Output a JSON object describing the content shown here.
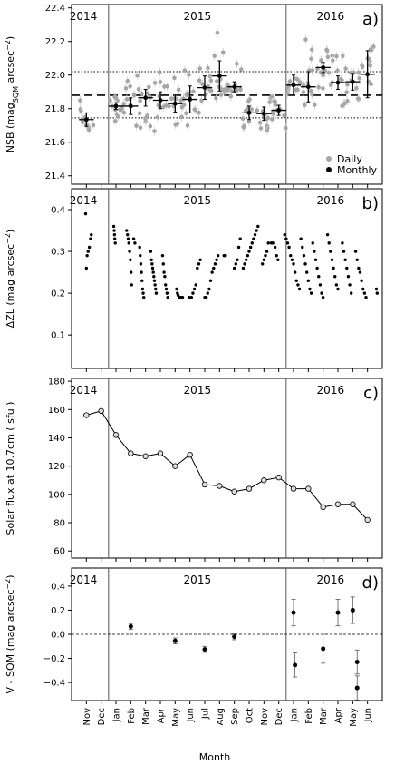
{
  "figure": {
    "xlabel": "Month",
    "month_ticks": [
      "Nov",
      "Dec",
      "Jan",
      "Feb",
      "Mar",
      "Apr",
      "May",
      "Jun",
      "Jul",
      "Aug",
      "Sep",
      "Oct",
      "Nov",
      "Dec",
      "Jan",
      "Feb",
      "Mar",
      "Apr",
      "May",
      "Jun"
    ],
    "years": [
      "2014",
      "2015",
      "2016"
    ],
    "colors": {
      "daily": "#a6a6a6",
      "monthly": "#000000",
      "axis": "#000000"
    }
  },
  "chart_data": [
    {
      "panel_label": "a)",
      "type": "scatter",
      "ylabel_main": "NSB (mag",
      "ylabel_sub": "SQM",
      "ylabel_tail": " arcsec",
      "ylabel_sup": "−2",
      "ylabel_close": ")",
      "ylim": [
        21.35,
        22.42
      ],
      "yticks": [
        "21.4",
        "21.6",
        "21.8",
        "22.0",
        "22.2",
        "22.4"
      ],
      "legend": {
        "daily": "Daily",
        "monthly": "Monthly",
        "position": "bottom-right"
      },
      "hlines": {
        "mean": 21.88,
        "upper": 22.02,
        "lower": 21.745
      },
      "daily_spread": [
        [
          0,
          21.74,
          0.12
        ],
        [
          2,
          21.83,
          0.12
        ],
        [
          3,
          21.84,
          0.2
        ],
        [
          4,
          21.87,
          0.22
        ],
        [
          5,
          21.83,
          0.22
        ],
        [
          6,
          21.85,
          0.22
        ],
        [
          7,
          21.9,
          0.22
        ],
        [
          8,
          21.92,
          0.22
        ],
        [
          9,
          22.03,
          0.28
        ],
        [
          10,
          21.95,
          0.14
        ],
        [
          11,
          21.78,
          0.16
        ],
        [
          12,
          21.76,
          0.14
        ],
        [
          13,
          21.8,
          0.12
        ],
        [
          14,
          21.94,
          0.1
        ],
        [
          15,
          22.0,
          0.26
        ],
        [
          16,
          22.05,
          0.16
        ],
        [
          17,
          21.98,
          0.22
        ],
        [
          18,
          22.0,
          0.22
        ],
        [
          19,
          22.06,
          0.18
        ]
      ],
      "monthly": [
        {
          "x": 0,
          "y": 21.735,
          "xerr": 0.5,
          "yerr": 0.04
        },
        {
          "x": 2,
          "y": 21.815,
          "xerr": 0.5,
          "yerr": 0.02
        },
        {
          "x": 3,
          "y": 21.815,
          "xerr": 0.5,
          "yerr": 0.05
        },
        {
          "x": 4,
          "y": 21.865,
          "xerr": 0.5,
          "yerr": 0.05
        },
        {
          "x": 5,
          "y": 21.85,
          "xerr": 0.5,
          "yerr": 0.05
        },
        {
          "x": 6,
          "y": 21.83,
          "xerr": 0.5,
          "yerr": 0.05
        },
        {
          "x": 7,
          "y": 21.855,
          "xerr": 0.5,
          "yerr": 0.08
        },
        {
          "x": 8,
          "y": 21.925,
          "xerr": 0.5,
          "yerr": 0.07
        },
        {
          "x": 9,
          "y": 21.995,
          "xerr": 0.5,
          "yerr": 0.09
        },
        {
          "x": 10,
          "y": 21.93,
          "xerr": 0.5,
          "yerr": 0.03
        },
        {
          "x": 11,
          "y": 21.775,
          "xerr": 0.5,
          "yerr": 0.04
        },
        {
          "x": 12,
          "y": 21.77,
          "xerr": 0.5,
          "yerr": 0.04
        },
        {
          "x": 13,
          "y": 21.79,
          "xerr": 0.5,
          "yerr": 0.03
        },
        {
          "x": 14,
          "y": 21.94,
          "xerr": 0.5,
          "yerr": 0.06
        },
        {
          "x": 15,
          "y": 21.93,
          "xerr": 0.5,
          "yerr": 0.09
        },
        {
          "x": 16,
          "y": 22.045,
          "xerr": 0.5,
          "yerr": 0.03
        },
        {
          "x": 17,
          "y": 21.955,
          "xerr": 0.5,
          "yerr": 0.04
        },
        {
          "x": 18,
          "y": 21.96,
          "xerr": 0.5,
          "yerr": 0.05
        },
        {
          "x": 19,
          "y": 22.005,
          "xerr": 0.5,
          "yerr": 0.14
        }
      ]
    },
    {
      "panel_label": "b)",
      "type": "scatter",
      "ylabel_main": "ΔZL  (mag  arcsec",
      "ylabel_sup": "−2",
      "ylabel_close": ")",
      "ylim": [
        0.02,
        0.45
      ],
      "yticks": [
        "0.1",
        "0.2",
        "0.3",
        "0.4"
      ],
      "points": [
        [
          -0.05,
          0.39
        ],
        [
          0.0,
          0.26
        ],
        [
          0.05,
          0.29
        ],
        [
          0.12,
          0.3
        ],
        [
          0.2,
          0.31
        ],
        [
          0.28,
          0.33
        ],
        [
          0.33,
          0.34
        ],
        [
          1.85,
          0.36
        ],
        [
          1.88,
          0.35
        ],
        [
          1.9,
          0.34
        ],
        [
          1.92,
          0.33
        ],
        [
          1.95,
          0.32
        ],
        [
          2.72,
          0.35
        ],
        [
          2.78,
          0.34
        ],
        [
          2.83,
          0.33
        ],
        [
          2.87,
          0.32
        ],
        [
          2.92,
          0.3
        ],
        [
          2.97,
          0.28
        ],
        [
          3.02,
          0.25
        ],
        [
          3.06,
          0.22
        ],
        [
          3.2,
          0.33
        ],
        [
          3.28,
          0.32
        ],
        [
          3.6,
          0.31
        ],
        [
          3.64,
          0.29
        ],
        [
          3.68,
          0.27
        ],
        [
          3.72,
          0.25
        ],
        [
          3.76,
          0.23
        ],
        [
          3.8,
          0.21
        ],
        [
          3.84,
          0.2
        ],
        [
          3.88,
          0.19
        ],
        [
          4.35,
          0.3
        ],
        [
          4.4,
          0.28
        ],
        [
          4.44,
          0.27
        ],
        [
          4.48,
          0.26
        ],
        [
          4.52,
          0.25
        ],
        [
          4.56,
          0.24
        ],
        [
          4.6,
          0.23
        ],
        [
          4.64,
          0.22
        ],
        [
          4.68,
          0.21
        ],
        [
          4.72,
          0.2
        ],
        [
          5.15,
          0.29
        ],
        [
          5.2,
          0.27
        ],
        [
          5.25,
          0.25
        ],
        [
          5.3,
          0.24
        ],
        [
          5.35,
          0.22
        ],
        [
          5.4,
          0.21
        ],
        [
          5.45,
          0.2
        ],
        [
          5.5,
          0.19
        ],
        [
          6.1,
          0.21
        ],
        [
          6.15,
          0.2
        ],
        [
          6.2,
          0.195
        ],
        [
          6.3,
          0.19
        ],
        [
          6.4,
          0.19
        ],
        [
          6.5,
          0.19
        ],
        [
          6.95,
          0.19
        ],
        [
          7.1,
          0.19
        ],
        [
          7.2,
          0.2
        ],
        [
          7.3,
          0.21
        ],
        [
          7.4,
          0.22
        ],
        [
          7.5,
          0.26
        ],
        [
          7.6,
          0.27
        ],
        [
          7.7,
          0.28
        ],
        [
          8.0,
          0.19
        ],
        [
          8.1,
          0.19
        ],
        [
          8.2,
          0.2
        ],
        [
          8.3,
          0.21
        ],
        [
          8.4,
          0.23
        ],
        [
          8.5,
          0.25
        ],
        [
          8.6,
          0.26
        ],
        [
          8.7,
          0.27
        ],
        [
          8.8,
          0.28
        ],
        [
          8.9,
          0.29
        ],
        [
          9.3,
          0.29
        ],
        [
          9.4,
          0.29
        ],
        [
          10.0,
          0.26
        ],
        [
          10.1,
          0.27
        ],
        [
          10.2,
          0.28
        ],
        [
          10.3,
          0.31
        ],
        [
          10.4,
          0.33
        ],
        [
          10.6,
          0.26
        ],
        [
          10.7,
          0.27
        ],
        [
          10.8,
          0.28
        ],
        [
          10.9,
          0.29
        ],
        [
          11.0,
          0.3
        ],
        [
          11.1,
          0.31
        ],
        [
          11.2,
          0.32
        ],
        [
          11.3,
          0.33
        ],
        [
          11.4,
          0.34
        ],
        [
          11.5,
          0.35
        ],
        [
          11.6,
          0.36
        ],
        [
          11.9,
          0.27
        ],
        [
          12.0,
          0.28
        ],
        [
          12.1,
          0.29
        ],
        [
          12.2,
          0.3
        ],
        [
          12.3,
          0.32
        ],
        [
          12.5,
          0.32
        ],
        [
          12.6,
          0.32
        ],
        [
          12.75,
          0.31
        ],
        [
          12.85,
          0.29
        ],
        [
          12.95,
          0.28
        ],
        [
          13.4,
          0.34
        ],
        [
          13.5,
          0.33
        ],
        [
          13.6,
          0.32
        ],
        [
          13.7,
          0.31
        ],
        [
          13.8,
          0.29
        ],
        [
          13.9,
          0.28
        ],
        [
          14.0,
          0.27
        ],
        [
          14.1,
          0.25
        ],
        [
          14.2,
          0.23
        ],
        [
          14.3,
          0.22
        ],
        [
          14.4,
          0.21
        ],
        [
          14.5,
          0.33
        ],
        [
          14.6,
          0.31
        ],
        [
          14.7,
          0.29
        ],
        [
          14.8,
          0.27
        ],
        [
          14.9,
          0.25
        ],
        [
          15.0,
          0.23
        ],
        [
          15.1,
          0.21
        ],
        [
          15.2,
          0.2
        ],
        [
          15.3,
          0.32
        ],
        [
          15.4,
          0.3
        ],
        [
          15.5,
          0.28
        ],
        [
          15.6,
          0.26
        ],
        [
          15.7,
          0.24
        ],
        [
          15.8,
          0.22
        ],
        [
          15.9,
          0.2
        ],
        [
          16.0,
          0.19
        ],
        [
          16.3,
          0.34
        ],
        [
          16.4,
          0.32
        ],
        [
          16.5,
          0.3
        ],
        [
          16.6,
          0.28
        ],
        [
          16.7,
          0.26
        ],
        [
          16.8,
          0.24
        ],
        [
          16.9,
          0.22
        ],
        [
          17.0,
          0.21
        ],
        [
          17.3,
          0.32
        ],
        [
          17.4,
          0.3
        ],
        [
          17.5,
          0.28
        ],
        [
          17.6,
          0.26
        ],
        [
          17.7,
          0.24
        ],
        [
          17.8,
          0.22
        ],
        [
          17.9,
          0.2
        ],
        [
          18.2,
          0.3
        ],
        [
          18.3,
          0.28
        ],
        [
          18.4,
          0.26
        ],
        [
          18.5,
          0.25
        ],
        [
          18.6,
          0.23
        ],
        [
          18.7,
          0.21
        ],
        [
          18.8,
          0.2
        ],
        [
          18.9,
          0.19
        ],
        [
          19.6,
          0.21
        ],
        [
          19.65,
          0.2
        ]
      ]
    },
    {
      "panel_label": "c)",
      "type": "line",
      "ylabel_main": "Solar flux at 10.7cm  ( sfu )",
      "ylim": [
        55,
        182
      ],
      "yticks": [
        "60",
        "80",
        "100",
        "120",
        "140",
        "160",
        "180"
      ],
      "x": [
        0,
        1,
        2,
        3,
        4,
        5,
        6,
        7,
        8,
        9,
        10,
        11,
        12,
        13,
        14,
        15,
        16,
        17,
        18,
        19
      ],
      "y": [
        156,
        159,
        142,
        129,
        127,
        129,
        120,
        128,
        107,
        106,
        102,
        104,
        110,
        112,
        104,
        104,
        91,
        93,
        93,
        82
      ]
    },
    {
      "panel_label": "d)",
      "type": "scatter",
      "ylabel_main": "V - SQM  (mag  arcsec",
      "ylabel_sup": "−2",
      "ylabel_close": ")",
      "ylim": [
        -0.55,
        0.55
      ],
      "yticks": [
        "−0.4",
        "−0.2",
        "0.0",
        "0.2",
        "0.4"
      ],
      "hline": 0.0,
      "points": [
        {
          "x": 3,
          "y": 0.065,
          "err": 0.025
        },
        {
          "x": 6,
          "y": -0.055,
          "err": 0.025
        },
        {
          "x": 8,
          "y": -0.125,
          "err": 0.025
        },
        {
          "x": 10,
          "y": -0.02,
          "err": 0.025
        },
        {
          "x": 14,
          "y": 0.18,
          "err": 0.11
        },
        {
          "x": 14.1,
          "y": -0.255,
          "err": 0.1
        },
        {
          "x": 16,
          "y": -0.12,
          "err": 0.12
        },
        {
          "x": 17,
          "y": 0.18,
          "err": 0.11
        },
        {
          "x": 18,
          "y": 0.2,
          "err": 0.11
        },
        {
          "x": 18.3,
          "y": -0.23,
          "err": 0.1
        },
        {
          "x": 18.3,
          "y": -0.445,
          "err": 0.1
        }
      ]
    }
  ]
}
